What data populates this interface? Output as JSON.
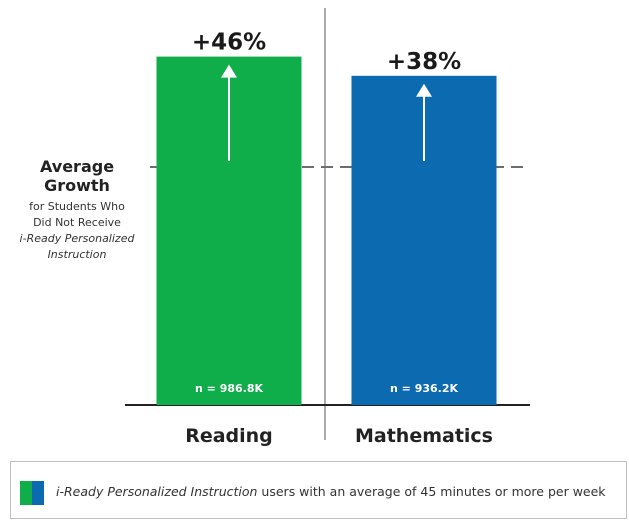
{
  "chart_data": {
    "type": "bar",
    "categories": [
      "Reading",
      "Mathematics"
    ],
    "series": [
      {
        "values": [
          46,
          38
        ],
        "value_labels": [
          "+46%",
          "+38%"
        ],
        "n_labels": [
          "n = 986.8K",
          "n = 936.2K"
        ],
        "colors": [
          "#0fae4b",
          "#0b6ab0"
        ]
      }
    ],
    "reference_line": {
      "value": 0,
      "label_lines": [
        "Average",
        "Growth",
        "for Students Who",
        "Did Not Receive",
        "i-Ready Personalized",
        "Instruction"
      ]
    },
    "title": "",
    "xlabel": "",
    "ylabel": "",
    "grid": false
  },
  "legend": {
    "swatch_colors": [
      "#0fae4b",
      "#0b6ab0"
    ],
    "italic_text": "i-Ready Personalized Instruction",
    "text": " users with an average of 45 minutes or more per week"
  }
}
